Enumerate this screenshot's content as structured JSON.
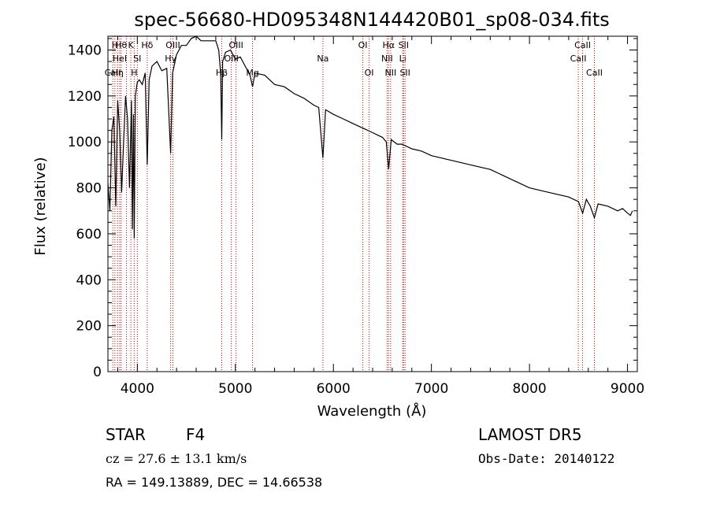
{
  "chart_data": {
    "type": "line",
    "title": "spec-56680-HD095348N144420B01_sp08-034.fits",
    "xlabel": "Wavelength (Å)",
    "ylabel": "Flux (relative)",
    "xlim": [
      3700,
      9100
    ],
    "ylim": [
      0,
      1460
    ],
    "x_ticks": [
      4000,
      5000,
      6000,
      7000,
      8000,
      9000
    ],
    "y_ticks": [
      0,
      200,
      400,
      600,
      800,
      1000,
      1200,
      1400
    ],
    "line_color": "#000000",
    "marker_color": "#cc0000",
    "series": [
      {
        "x": [
          3700,
          3720,
          3740,
          3760,
          3780,
          3800,
          3820,
          3840,
          3860,
          3880,
          3900,
          3920,
          3940,
          3950,
          3960,
          3968,
          3980,
          4000,
          4020,
          4050,
          4080,
          4101,
          4120,
          4150,
          4200,
          4250,
          4300,
          4340,
          4360,
          4400,
          4450,
          4500,
          4550,
          4600,
          4650,
          4700,
          4750,
          4800,
          4830,
          4850,
          4861,
          4870,
          4900,
          4950,
          5000,
          5050,
          5100,
          5150,
          5175,
          5200,
          5300,
          5400,
          5500,
          5600,
          5700,
          5800,
          5850,
          5893,
          5920,
          6000,
          6100,
          6200,
          6300,
          6400,
          6500,
          6540,
          6563,
          6590,
          6650,
          6700,
          6800,
          6900,
          7000,
          7200,
          7400,
          7600,
          7800,
          8000,
          8200,
          8400,
          8500,
          8542,
          8580,
          8620,
          8662,
          8700,
          8800,
          8900,
          8950,
          9000,
          9030,
          9050
        ],
        "y": [
          820,
          700,
          1050,
          1110,
          720,
          1180,
          1050,
          780,
          1000,
          1200,
          1100,
          800,
          1180,
          620,
          1120,
          580,
          1200,
          1260,
          1270,
          1250,
          1300,
          900,
          1270,
          1330,
          1350,
          1310,
          1320,
          950,
          1300,
          1380,
          1420,
          1420,
          1450,
          1460,
          1440,
          1440,
          1440,
          1440,
          1400,
          1300,
          1010,
          1350,
          1390,
          1400,
          1360,
          1370,
          1330,
          1290,
          1240,
          1300,
          1290,
          1250,
          1240,
          1210,
          1190,
          1160,
          1150,
          930,
          1140,
          1120,
          1100,
          1080,
          1060,
          1040,
          1020,
          1000,
          880,
          1010,
          990,
          990,
          970,
          960,
          940,
          920,
          900,
          880,
          840,
          800,
          780,
          760,
          740,
          690,
          750,
          720,
          670,
          730,
          720,
          700,
          710,
          690,
          680,
          700
        ]
      }
    ],
    "line_markers": [
      {
        "wl": 3750,
        "label": "CaII",
        "row": 2
      },
      {
        "wl": 3771,
        "label": "H",
        "row": 0
      },
      {
        "wl": 3798,
        "label": "Hη",
        "row": 2
      },
      {
        "wl": 3820,
        "label": "HeI",
        "row": 1
      },
      {
        "wl": 3835,
        "label": "Hθ",
        "row": 0
      },
      {
        "wl": 3889,
        "label": "",
        "row": 0
      },
      {
        "wl": 3934,
        "label": "K",
        "row": 0
      },
      {
        "wl": 3968,
        "label": "H",
        "row": 2
      },
      {
        "wl": 4000,
        "label": "SI",
        "row": 1
      },
      {
        "wl": 4101,
        "label": "Hδ",
        "row": 0
      },
      {
        "wl": 4340,
        "label": "Hγ",
        "row": 1
      },
      {
        "wl": 4363,
        "label": "OIII",
        "row": 0
      },
      {
        "wl": 4861,
        "label": "Hβ",
        "row": 2
      },
      {
        "wl": 4959,
        "label": "OIII",
        "row": 1
      },
      {
        "wl": 5007,
        "label": "OIII",
        "row": 0
      },
      {
        "wl": 5175,
        "label": "Mg",
        "row": 2
      },
      {
        "wl": 5893,
        "label": "Na",
        "row": 1
      },
      {
        "wl": 6300,
        "label": "OI",
        "row": 0
      },
      {
        "wl": 6364,
        "label": "OI",
        "row": 2
      },
      {
        "wl": 6548,
        "label": "NII",
        "row": 1
      },
      {
        "wl": 6563,
        "label": "Hα",
        "row": 0
      },
      {
        "wl": 6584,
        "label": "NII",
        "row": 2
      },
      {
        "wl": 6707,
        "label": "Li",
        "row": 1
      },
      {
        "wl": 6716,
        "label": "SII",
        "row": 0
      },
      {
        "wl": 6731,
        "label": "SII",
        "row": 2
      },
      {
        "wl": 8498,
        "label": "CaII",
        "row": 1
      },
      {
        "wl": 8542,
        "label": "CaII",
        "row": 0
      },
      {
        "wl": 8662,
        "label": "CaII",
        "row": 2
      }
    ]
  },
  "info": {
    "object_class": "STAR",
    "subclass": "F4",
    "survey": "LAMOST DR5",
    "cz": "cz = 27.6 ± 13.1 km/s",
    "obs_date": "Obs-Date: 20140122",
    "coords": "RA = 149.13889, DEC =  14.66538"
  }
}
